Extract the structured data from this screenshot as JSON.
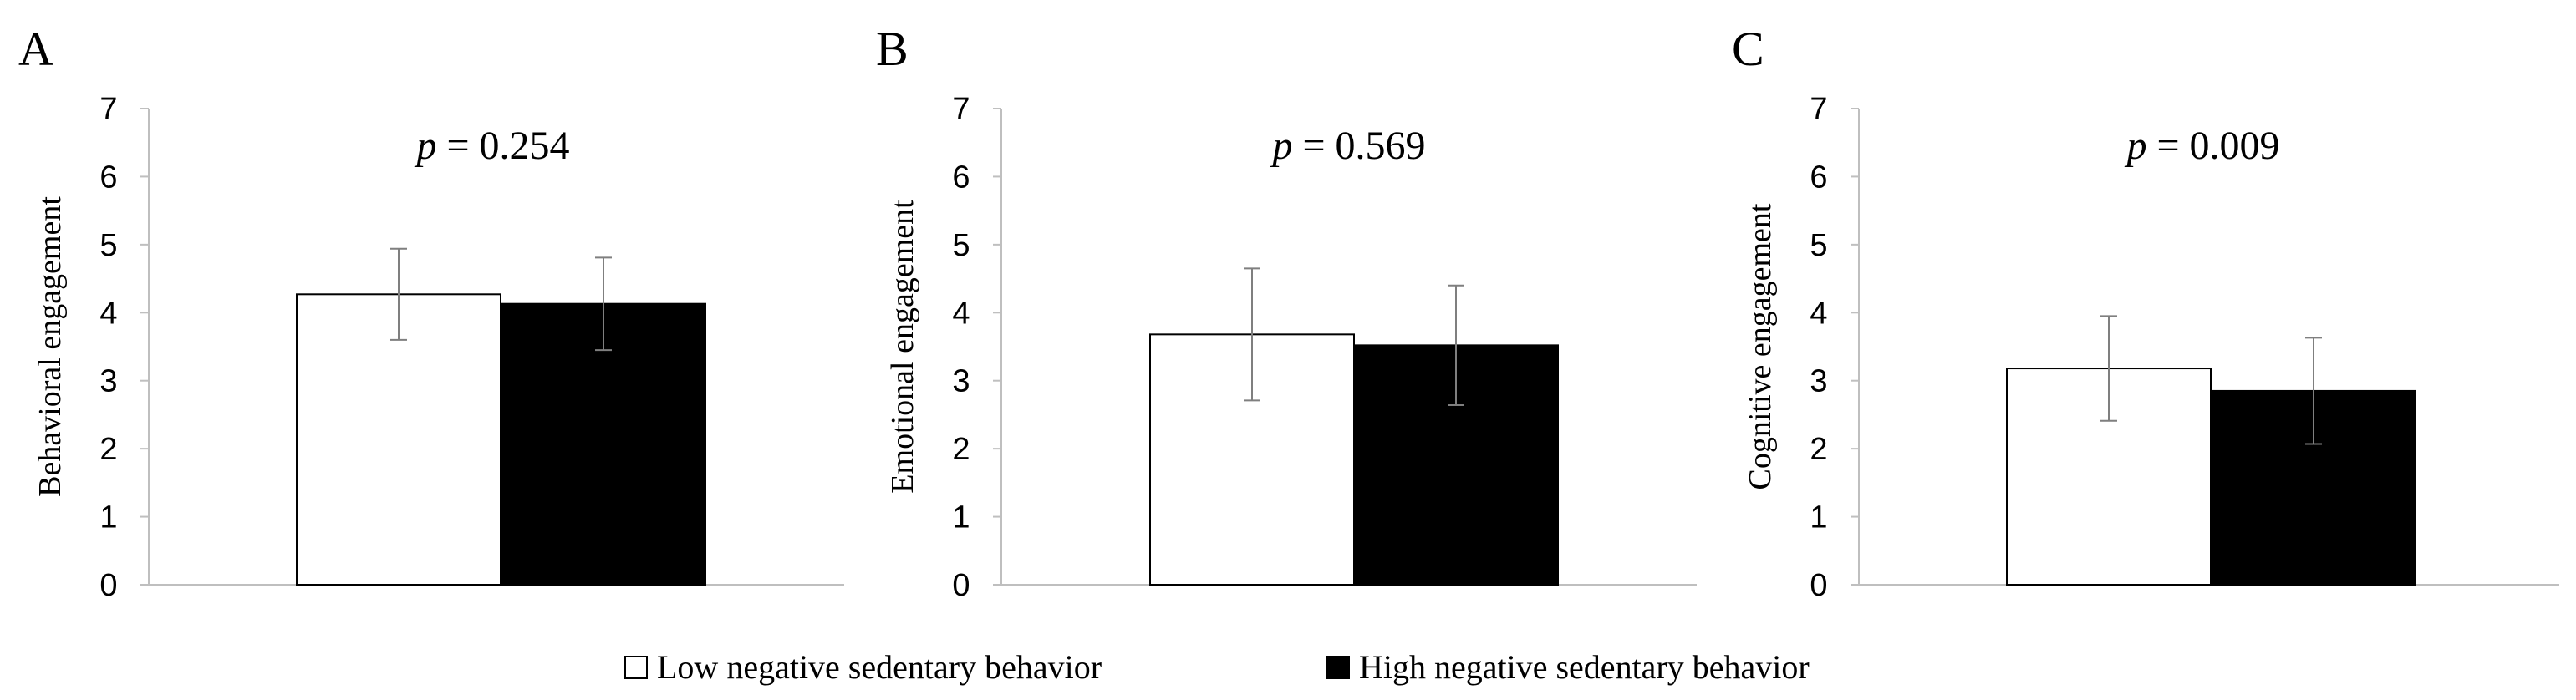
{
  "chart_data": [
    {
      "type": "bar",
      "panel": "A",
      "title": "",
      "xlabel": "",
      "ylabel": "Behavioral engagement",
      "ylim": [
        0,
        7
      ],
      "yticks": [
        "0",
        "1",
        "2",
        "3",
        "4",
        "5",
        "6",
        "7"
      ],
      "annotation": {
        "italic": "p",
        "rest": " = 0.254"
      },
      "categories": [
        ""
      ],
      "series": [
        {
          "name": "Low negative sedentary behavior",
          "color": "#ffffff",
          "values": [
            4.27
          ],
          "error": [
            0.67
          ]
        },
        {
          "name": "High negative sedentary behavior",
          "color": "#000000",
          "values": [
            4.13
          ],
          "error": [
            0.68
          ]
        }
      ]
    },
    {
      "type": "bar",
      "panel": "B",
      "title": "",
      "xlabel": "",
      "ylabel": "Emotional engagement",
      "ylim": [
        0,
        7
      ],
      "yticks": [
        "0",
        "1",
        "2",
        "3",
        "4",
        "5",
        "6",
        "7"
      ],
      "annotation": {
        "italic": "p",
        "rest": " = 0.569"
      },
      "categories": [
        ""
      ],
      "series": [
        {
          "name": "Low negative sedentary behavior",
          "color": "#ffffff",
          "values": [
            3.68
          ],
          "error": [
            0.97
          ]
        },
        {
          "name": "High negative sedentary behavior",
          "color": "#000000",
          "values": [
            3.52
          ],
          "error": [
            0.88
          ]
        }
      ]
    },
    {
      "type": "bar",
      "panel": "C",
      "title": "",
      "xlabel": "",
      "ylabel": "Cognitive engagement",
      "ylim": [
        0,
        7
      ],
      "yticks": [
        "0",
        "1",
        "2",
        "3",
        "4",
        "5",
        "6",
        "7"
      ],
      "annotation": {
        "italic": "p",
        "rest": " = 0.009"
      },
      "categories": [
        ""
      ],
      "series": [
        {
          "name": "Low negative sedentary behavior",
          "color": "#ffffff",
          "values": [
            3.18
          ],
          "error": [
            0.77
          ]
        },
        {
          "name": "High negative sedentary behavior",
          "color": "#000000",
          "values": [
            2.85
          ],
          "error": [
            0.78
          ]
        }
      ]
    }
  ],
  "legend": {
    "items": [
      {
        "label": "Low negative sedentary behavior",
        "color": "#ffffff"
      },
      {
        "label": "High negative sedentary behavior",
        "color": "#000000"
      }
    ]
  },
  "colors": {
    "axis": "#bfbfbf",
    "error_bar": "#7f7f7f",
    "bar_outline": "#000000"
  }
}
